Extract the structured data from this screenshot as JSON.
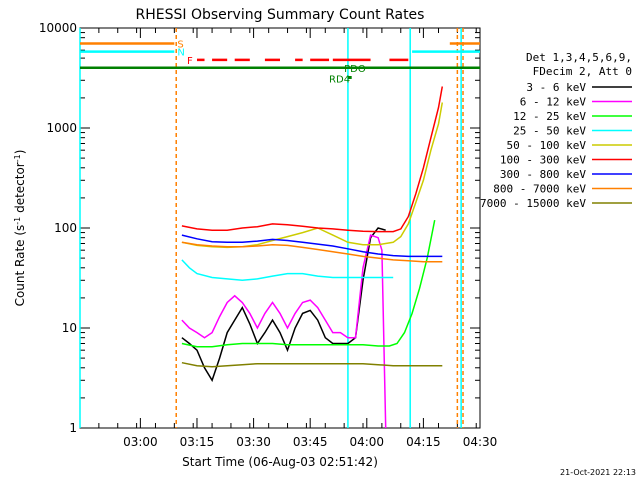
{
  "chart_data": {
    "type": "line",
    "title": "RHESSI Observing Summary Count Rates",
    "xlabel": "Start Time (06-Aug-03 02:51:42)",
    "ylabel": "Count Rate (s",
    "ylabel_sup1": "-1",
    "ylabel_mid": " detector",
    "ylabel_sup2": "-1",
    "ylabel_end": ")",
    "y_scale": "log",
    "ylim": [
      1,
      10000
    ],
    "xlim_minutes": [
      -8,
      98
    ],
    "x_ticks": [
      {
        "min": 8,
        "label": "03:00"
      },
      {
        "min": 23,
        "label": "03:15"
      },
      {
        "min": 38,
        "label": "03:30"
      },
      {
        "min": 53,
        "label": "03:45"
      },
      {
        "min": 68,
        "label": "04:00"
      },
      {
        "min": 83,
        "label": "04:15"
      },
      {
        "min": 98,
        "label": "04:30"
      }
    ],
    "y_ticks": [
      {
        "v": 1,
        "label": "1"
      },
      {
        "v": 10,
        "label": "10"
      },
      {
        "v": 100,
        "label": "100"
      },
      {
        "v": 1000,
        "label": "1000"
      },
      {
        "v": 10000,
        "label": "10000"
      }
    ],
    "legend_header": [
      "Det 1,3,4,5,6,9,",
      "FDecim 2, Att 0"
    ],
    "series": [
      {
        "name": "3 - 6 keV",
        "color": "#000000",
        "values": [
          [
            19,
            8
          ],
          [
            21,
            7
          ],
          [
            23,
            6
          ],
          [
            25,
            4
          ],
          [
            27,
            3
          ],
          [
            29,
            5
          ],
          [
            31,
            9
          ],
          [
            33,
            12
          ],
          [
            35,
            16
          ],
          [
            37,
            11
          ],
          [
            39,
            7
          ],
          [
            41,
            9
          ],
          [
            43,
            12
          ],
          [
            45,
            9
          ],
          [
            47,
            6
          ],
          [
            49,
            10
          ],
          [
            51,
            14
          ],
          [
            53,
            15
          ],
          [
            55,
            12
          ],
          [
            57,
            8
          ],
          [
            59,
            7
          ],
          [
            61,
            7
          ],
          [
            63,
            7
          ],
          [
            65,
            8
          ],
          [
            67,
            30
          ],
          [
            69,
            80
          ],
          [
            71,
            100
          ],
          [
            73,
            95
          ]
        ]
      },
      {
        "name": "6 - 12 keV",
        "color": "#ff00ff",
        "values": [
          [
            19,
            12
          ],
          [
            21,
            10
          ],
          [
            23,
            9
          ],
          [
            25,
            8
          ],
          [
            27,
            9
          ],
          [
            29,
            13
          ],
          [
            31,
            18
          ],
          [
            33,
            21
          ],
          [
            35,
            18
          ],
          [
            37,
            14
          ],
          [
            39,
            10
          ],
          [
            41,
            14
          ],
          [
            43,
            18
          ],
          [
            45,
            14
          ],
          [
            47,
            10
          ],
          [
            49,
            14
          ],
          [
            51,
            18
          ],
          [
            53,
            19
          ],
          [
            55,
            16
          ],
          [
            57,
            12
          ],
          [
            59,
            9
          ],
          [
            61,
            9
          ],
          [
            63,
            8
          ],
          [
            65,
            8
          ],
          [
            67,
            40
          ],
          [
            69,
            85
          ],
          [
            71,
            80
          ],
          [
            72,
            60
          ],
          [
            73,
            1
          ]
        ]
      },
      {
        "name": "12 - 25 keV",
        "color": "#00ff00",
        "values": [
          [
            19,
            7
          ],
          [
            23,
            6.5
          ],
          [
            27,
            6.5
          ],
          [
            31,
            6.8
          ],
          [
            35,
            7
          ],
          [
            39,
            7
          ],
          [
            43,
            7
          ],
          [
            47,
            6.8
          ],
          [
            51,
            6.8
          ],
          [
            55,
            6.8
          ],
          [
            59,
            6.8
          ],
          [
            63,
            6.8
          ],
          [
            67,
            6.8
          ],
          [
            71,
            6.6
          ],
          [
            74,
            6.6
          ],
          [
            76,
            7
          ],
          [
            78,
            9
          ],
          [
            80,
            14
          ],
          [
            82,
            25
          ],
          [
            84,
            50
          ],
          [
            86,
            120
          ]
        ]
      },
      {
        "name": "25 - 50 keV",
        "color": "#00ffff",
        "values": [
          [
            19,
            48
          ],
          [
            21,
            40
          ],
          [
            23,
            35
          ],
          [
            27,
            32
          ],
          [
            31,
            31
          ],
          [
            35,
            30
          ],
          [
            39,
            31
          ],
          [
            43,
            33
          ],
          [
            47,
            35
          ],
          [
            51,
            35
          ],
          [
            55,
            33
          ],
          [
            59,
            32
          ],
          [
            63,
            32
          ],
          [
            67,
            32
          ],
          [
            71,
            32
          ],
          [
            75,
            32
          ]
        ]
      },
      {
        "name": "50 - 100 keV",
        "color": "#cccc00",
        "values": [
          [
            19,
            72
          ],
          [
            23,
            67
          ],
          [
            27,
            65
          ],
          [
            31,
            64
          ],
          [
            35,
            65
          ],
          [
            39,
            68
          ],
          [
            43,
            75
          ],
          [
            47,
            82
          ],
          [
            51,
            90
          ],
          [
            55,
            100
          ],
          [
            59,
            85
          ],
          [
            63,
            72
          ],
          [
            67,
            68
          ],
          [
            71,
            68
          ],
          [
            75,
            72
          ],
          [
            77,
            82
          ],
          [
            79,
            110
          ],
          [
            81,
            180
          ],
          [
            83,
            300
          ],
          [
            85,
            600
          ],
          [
            87,
            1100
          ],
          [
            88,
            1800
          ]
        ]
      },
      {
        "name": "100 - 300 keV",
        "color": "#ff0000",
        "values": [
          [
            19,
            105
          ],
          [
            23,
            98
          ],
          [
            27,
            95
          ],
          [
            31,
            95
          ],
          [
            35,
            100
          ],
          [
            39,
            103
          ],
          [
            43,
            110
          ],
          [
            47,
            108
          ],
          [
            51,
            104
          ],
          [
            55,
            100
          ],
          [
            59,
            98
          ],
          [
            63,
            95
          ],
          [
            67,
            93
          ],
          [
            71,
            92
          ],
          [
            75,
            92
          ],
          [
            77,
            98
          ],
          [
            79,
            130
          ],
          [
            81,
            220
          ],
          [
            83,
            400
          ],
          [
            85,
            800
          ],
          [
            87,
            1600
          ],
          [
            88,
            2600
          ]
        ]
      },
      {
        "name": "300 - 800 keV",
        "color": "#0000ff",
        "values": [
          [
            19,
            85
          ],
          [
            23,
            78
          ],
          [
            27,
            73
          ],
          [
            31,
            72
          ],
          [
            35,
            72
          ],
          [
            39,
            74
          ],
          [
            43,
            77
          ],
          [
            47,
            75
          ],
          [
            51,
            72
          ],
          [
            55,
            69
          ],
          [
            59,
            66
          ],
          [
            63,
            62
          ],
          [
            67,
            58
          ],
          [
            71,
            55
          ],
          [
            75,
            53
          ],
          [
            79,
            52
          ],
          [
            83,
            52
          ],
          [
            87,
            52
          ],
          [
            88,
            52
          ]
        ]
      },
      {
        "name": "800 - 7000 keV",
        "color": "#ff8000",
        "values": [
          [
            19,
            72
          ],
          [
            23,
            68
          ],
          [
            27,
            66
          ],
          [
            31,
            65
          ],
          [
            35,
            65
          ],
          [
            39,
            66
          ],
          [
            43,
            68
          ],
          [
            47,
            67
          ],
          [
            51,
            64
          ],
          [
            55,
            61
          ],
          [
            59,
            58
          ],
          [
            63,
            55
          ],
          [
            67,
            52
          ],
          [
            71,
            50
          ],
          [
            75,
            48
          ],
          [
            79,
            47
          ],
          [
            83,
            46
          ],
          [
            87,
            46
          ],
          [
            88,
            46
          ]
        ]
      },
      {
        "name": "7000 - 15000 keV",
        "color": "#808000",
        "values": [
          [
            19,
            4.5
          ],
          [
            23,
            4.2
          ],
          [
            27,
            4.1
          ],
          [
            31,
            4.2
          ],
          [
            35,
            4.3
          ],
          [
            39,
            4.4
          ],
          [
            43,
            4.4
          ],
          [
            47,
            4.4
          ],
          [
            51,
            4.4
          ],
          [
            55,
            4.4
          ],
          [
            59,
            4.4
          ],
          [
            63,
            4.4
          ],
          [
            67,
            4.4
          ],
          [
            71,
            4.3
          ],
          [
            75,
            4.2
          ],
          [
            79,
            4.2
          ],
          [
            83,
            4.2
          ],
          [
            87,
            4.2
          ],
          [
            88,
            4.2
          ]
        ]
      }
    ],
    "flag_bars": [
      {
        "label": "S",
        "color": "#ff8000",
        "value": 7000,
        "ranges": [
          [
            -8,
            17
          ],
          [
            90,
            98
          ]
        ]
      },
      {
        "label": "N",
        "color": "#00ffff",
        "value": 5800,
        "ranges": [
          [
            -8,
            17
          ],
          [
            80,
            98
          ]
        ]
      },
      {
        "label": "F",
        "color": "#ff0000",
        "value": 4800,
        "ranges": [
          [
            23,
            25
          ],
          [
            27,
            31
          ],
          [
            33,
            37
          ],
          [
            41,
            45
          ],
          [
            49,
            51
          ],
          [
            53,
            58
          ],
          [
            59,
            63
          ],
          [
            63,
            69
          ],
          [
            74,
            79
          ]
        ]
      },
      {
        "label": "PDO",
        "color": "#008000",
        "value": 4000,
        "ranges": [
          [
            -8,
            98
          ]
        ]
      },
      {
        "label": "RD4",
        "color": "#008000",
        "value": 3200,
        "ranges": [
          [
            63,
            64
          ]
        ]
      }
    ],
    "vlines": [
      {
        "min": -8,
        "color": "#00ffff",
        "dash": false
      },
      {
        "min": 17.5,
        "color": "#ff8000",
        "dash": true
      },
      {
        "min": 63,
        "color": "#00ffff",
        "dash": false
      },
      {
        "min": 79.5,
        "color": "#00ffff",
        "dash": false
      },
      {
        "min": 92,
        "color": "#ff8000",
        "dash": true
      },
      {
        "min": 93,
        "color": "#00ffff",
        "dash": false
      },
      {
        "min": 93.5,
        "color": "#ff8000",
        "dash": true
      }
    ]
  },
  "footer": {
    "timestamp": "21-Oct-2021 22:13"
  }
}
